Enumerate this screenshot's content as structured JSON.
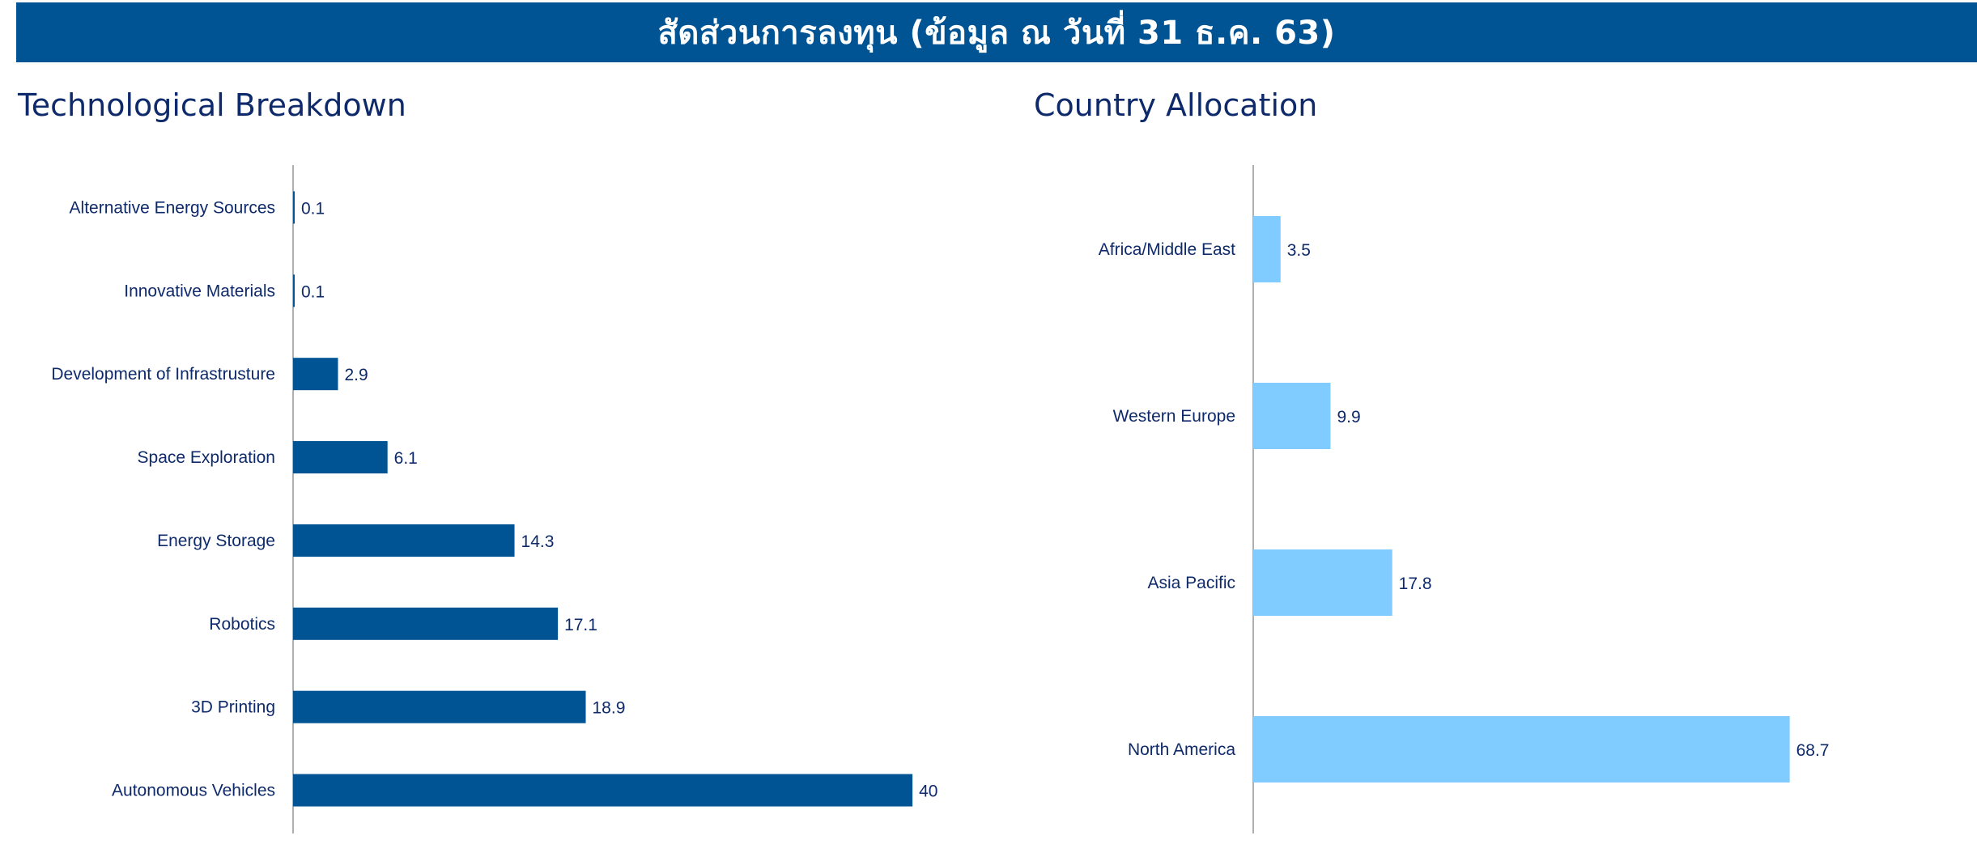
{
  "banner": {
    "title": "สัดส่วนการลงทุน (ข้อมูล ณ วันที่ 31 ธ.ค. 63)"
  },
  "colors": {
    "banner": "#005494",
    "tech_bar": "#005494",
    "country_bar": "#80CBFF",
    "text": "#0e2a6b",
    "axis": "#b0b0b0"
  },
  "chart_data": [
    {
      "type": "bar",
      "orientation": "horizontal",
      "title": "Technological Breakdown",
      "categories": [
        "Alternative Energy Sources",
        "Innovative Materials",
        "Development of Infrastrusture",
        "Space Exploration",
        "Energy Storage",
        "Robotics",
        "3D Printing",
        "Autonomous Vehicles"
      ],
      "values": [
        0.1,
        0.1,
        2.9,
        6.1,
        14.3,
        17.1,
        18.9,
        40
      ],
      "value_labels": [
        "0.1",
        "0.1",
        "2.9",
        "6.1",
        "14.3",
        "17.1",
        "18.9",
        "40"
      ],
      "xlim": [
        0,
        47
      ],
      "grid": false,
      "color": "#005494"
    },
    {
      "type": "bar",
      "orientation": "horizontal",
      "title": "Country Allocation",
      "categories": [
        "Africa/Middle East",
        "Western Europe",
        "Asia Pacific",
        "North America"
      ],
      "values": [
        3.5,
        9.9,
        17.8,
        68.7
      ],
      "value_labels": [
        "3.5",
        "9.9",
        "17.8",
        "68.7"
      ],
      "xlim": [
        0,
        93
      ],
      "grid": false,
      "color": "#80CBFF"
    }
  ]
}
